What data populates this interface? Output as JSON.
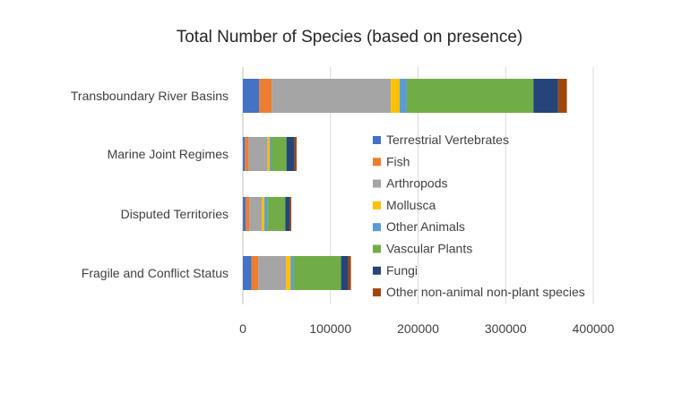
{
  "chart_data": {
    "type": "bar",
    "orientation": "horizontal",
    "stacked": true,
    "title": "Total Number of Species (based on presence)",
    "xlabel": "",
    "ylabel": "",
    "xlim": [
      0,
      400000
    ],
    "x_ticks": [
      "0",
      "100000",
      "200000",
      "300000",
      "400000"
    ],
    "grid": true,
    "legend_position": "right-inside",
    "categories": [
      "Transboundary River Basins",
      "Marine Joint Regimes",
      "Disputed Territories",
      "Fragile and Conflict Status"
    ],
    "series": [
      {
        "name": "Terrestrial Vertebrates",
        "color": "#4472C4",
        "values": [
          18700,
          2400,
          3100,
          9900
        ]
      },
      {
        "name": "Fish",
        "color": "#ED7D31",
        "values": [
          14300,
          4100,
          4400,
          7800
        ]
      },
      {
        "name": "Arthropods",
        "color": "#A5A5A5",
        "values": [
          136000,
          21800,
          14000,
          31700
        ]
      },
      {
        "name": "Mollusca",
        "color": "#FFC000",
        "values": [
          9900,
          2400,
          3100,
          5100
        ]
      },
      {
        "name": "Other Animals",
        "color": "#5B9BD5",
        "values": [
          8200,
          2000,
          3400,
          3400
        ]
      },
      {
        "name": "Vascular Plants",
        "color": "#70AD47",
        "values": [
          144600,
          17100,
          20500,
          54200
        ]
      },
      {
        "name": "Fungi",
        "color": "#264478",
        "values": [
          28000,
          9200,
          5100,
          8200
        ]
      },
      {
        "name": "Other non-animal non-plant species",
        "color": "#9E480E",
        "values": [
          10200,
          2400,
          1700,
          3100
        ]
      }
    ]
  }
}
